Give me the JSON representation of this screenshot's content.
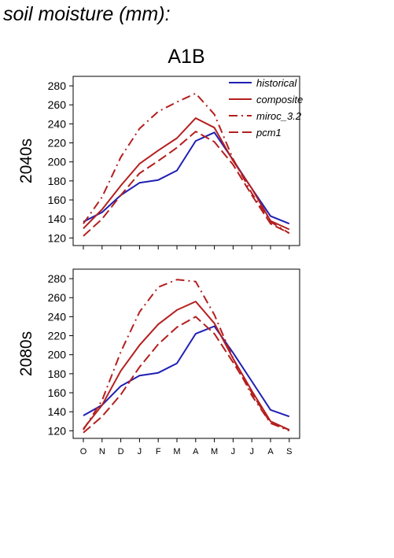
{
  "page_title": "soil moisture (mm):",
  "scenario": "A1B",
  "colors": {
    "historical": "#1f1fb4",
    "model": "#b41f1f"
  },
  "legend": [
    {
      "name": "historical",
      "dash": "solid",
      "color": "#1f1fb4"
    },
    {
      "name": "composite",
      "dash": "solid",
      "color": "#b41f1f"
    },
    {
      "name": "miroc_3.2",
      "dash": "dashdot",
      "color": "#b41f1f"
    },
    {
      "name": "pcm1",
      "dash": "dashed",
      "color": "#b41f1f"
    }
  ],
  "chart_data": [
    {
      "type": "line",
      "ylabel": "2040s",
      "x": [
        "O",
        "N",
        "D",
        "J",
        "F",
        "M",
        "A",
        "M",
        "J",
        "J",
        "A",
        "S"
      ],
      "ylim": [
        112,
        290
      ],
      "yticks": [
        120,
        140,
        160,
        180,
        200,
        220,
        240,
        260,
        280
      ],
      "legend_position": "top-right",
      "series": [
        {
          "name": "historical",
          "values": [
            137,
            147,
            165,
            178,
            181,
            191,
            222,
            231,
            202,
            172,
            143,
            135
          ]
        },
        {
          "name": "composite",
          "values": [
            130,
            150,
            175,
            198,
            212,
            225,
            246,
            236,
            201,
            172,
            138,
            129
          ]
        },
        {
          "name": "miroc_3.2",
          "values": [
            135,
            163,
            205,
            235,
            253,
            263,
            272,
            250,
            203,
            167,
            137,
            125
          ]
        },
        {
          "name": "pcm1",
          "values": [
            122,
            140,
            165,
            188,
            201,
            215,
            232,
            221,
            197,
            165,
            135,
            125
          ]
        }
      ]
    },
    {
      "type": "line",
      "ylabel": "2080s",
      "x": [
        "O",
        "N",
        "D",
        "J",
        "F",
        "M",
        "A",
        "M",
        "J",
        "J",
        "A",
        "S"
      ],
      "ylim": [
        112,
        290
      ],
      "yticks": [
        120,
        140,
        160,
        180,
        200,
        220,
        240,
        260,
        280
      ],
      "series": [
        {
          "name": "historical",
          "values": [
            136,
            147,
            167,
            178,
            181,
            191,
            222,
            230,
            202,
            172,
            142,
            135
          ]
        },
        {
          "name": "composite",
          "values": [
            122,
            147,
            183,
            210,
            232,
            247,
            256,
            233,
            196,
            162,
            130,
            121
          ]
        },
        {
          "name": "miroc_3.2",
          "values": [
            121,
            152,
            203,
            245,
            271,
            279,
            277,
            242,
            196,
            157,
            128,
            120
          ]
        },
        {
          "name": "pcm1",
          "values": [
            118,
            135,
            158,
            187,
            211,
            229,
            240,
            222,
            192,
            160,
            128,
            121
          ]
        }
      ]
    }
  ]
}
